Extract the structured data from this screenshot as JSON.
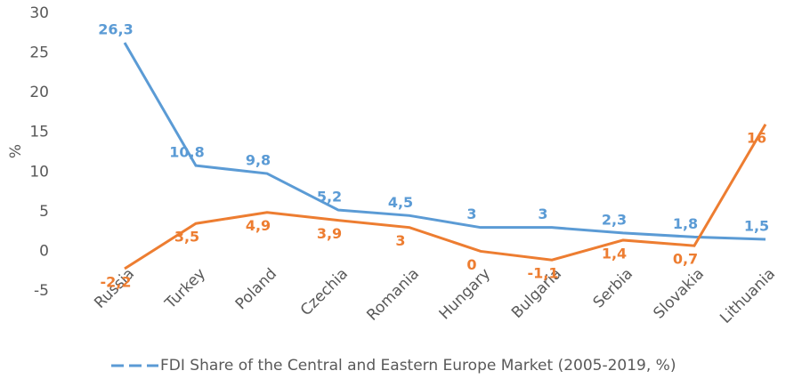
{
  "chart_data": {
    "type": "line",
    "y_label": "%",
    "categories": [
      "Russia",
      "Turkey",
      "Poland",
      "Czechia",
      "Romania",
      "Hungary",
      "Bulgaria",
      "Serbia",
      "Slovakia",
      "Lithuania"
    ],
    "series": [
      {
        "name": "FDI Share of the Central and Eastern Europe Market (2005-2019, %)",
        "color": "#5b9bd5",
        "values": [
          26.3,
          10.8,
          9.8,
          5.2,
          4.5,
          3,
          3,
          2.3,
          1.8,
          1.5
        ],
        "value_labels": [
          "26,3",
          "10,8",
          "9,8",
          "5,2",
          "4,5",
          "3",
          "3",
          "2,3",
          "1,8",
          "1,5"
        ]
      },
      {
        "color": "#ed7d31",
        "values": [
          -2.2,
          3.5,
          4.9,
          3.9,
          3,
          0,
          -1.1,
          1.4,
          0.7,
          16
        ],
        "value_labels": [
          "-2,2",
          "3,5",
          "4,9",
          "3,9",
          "3",
          "0",
          "-1,1",
          "1,4",
          "0,7",
          "16"
        ]
      }
    ],
    "ylim": [
      -5,
      30
    ],
    "yticks": [
      -5,
      0,
      5,
      10,
      15,
      20,
      25,
      30
    ],
    "grid": false
  }
}
